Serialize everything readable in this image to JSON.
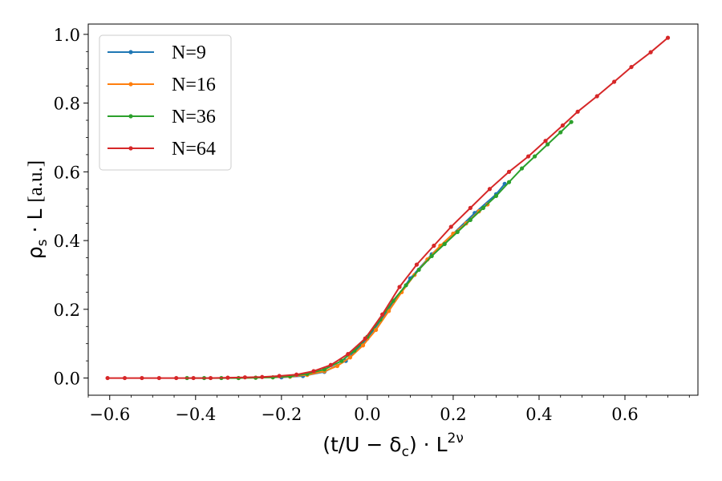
{
  "chart_data": {
    "type": "line",
    "title": "",
    "xlabel": "(t/U − δ_c) · L^{2ν}",
    "ylabel": "ρ_s · L [a.u.]",
    "xlabel_parts": {
      "main": "(t/U − δ",
      "sub": "c",
      "mid": ") · L",
      "sup": "2ν"
    },
    "ylabel_parts": {
      "main": "ρ",
      "sub": "s",
      "mid": " · L ",
      "unit": "[a.u.]"
    },
    "xlim": [
      -0.65,
      0.77
    ],
    "ylim": [
      -0.05,
      1.03
    ],
    "x_ticks": [
      -0.6,
      -0.4,
      -0.2,
      0.0,
      0.2,
      0.4,
      0.6
    ],
    "x_tick_labels": [
      "−0.6",
      "−0.4",
      "−0.2",
      "0.0",
      "0.2",
      "0.4",
      "0.6"
    ],
    "y_ticks": [
      0.0,
      0.2,
      0.4,
      0.6,
      0.8,
      1.0
    ],
    "y_tick_labels": [
      "0.0",
      "0.2",
      "0.4",
      "0.6",
      "0.8",
      "1.0"
    ],
    "grid": false,
    "legend_position": "top-left",
    "series": [
      {
        "name": "N=9",
        "color": "#1f77b4",
        "x": [
          -0.2,
          -0.15,
          -0.1,
          -0.05,
          0.0,
          0.05,
          0.1,
          0.15,
          0.2,
          0.25,
          0.3,
          0.32
        ],
        "y": [
          0.002,
          0.006,
          0.018,
          0.05,
          0.115,
          0.2,
          0.29,
          0.36,
          0.42,
          0.48,
          0.535,
          0.565
        ]
      },
      {
        "name": "N=16",
        "color": "#ff7f0e",
        "x": [
          -0.3,
          -0.26,
          -0.22,
          -0.18,
          -0.14,
          -0.1,
          -0.07,
          -0.04,
          -0.01,
          0.02,
          0.05,
          0.08,
          0.11,
          0.14,
          0.17,
          0.2,
          0.23,
          0.26,
          0.28
        ],
        "y": [
          0.0,
          0.001,
          0.002,
          0.004,
          0.009,
          0.02,
          0.035,
          0.06,
          0.095,
          0.14,
          0.195,
          0.25,
          0.3,
          0.345,
          0.385,
          0.42,
          0.45,
          0.485,
          0.505
        ]
      },
      {
        "name": "N=36",
        "color": "#2ca02c",
        "x": [
          -0.42,
          -0.38,
          -0.34,
          -0.3,
          -0.26,
          -0.22,
          -0.18,
          -0.14,
          -0.1,
          -0.06,
          -0.03,
          0.0,
          0.03,
          0.06,
          0.09,
          0.12,
          0.15,
          0.18,
          0.21,
          0.24,
          0.27,
          0.3,
          0.33,
          0.36,
          0.39,
          0.42,
          0.45,
          0.475
        ],
        "y": [
          0.0,
          0.0,
          0.0,
          0.0,
          0.001,
          0.002,
          0.005,
          0.012,
          0.025,
          0.05,
          0.08,
          0.12,
          0.17,
          0.225,
          0.27,
          0.315,
          0.355,
          0.39,
          0.425,
          0.46,
          0.495,
          0.53,
          0.57,
          0.61,
          0.645,
          0.68,
          0.715,
          0.745
        ]
      },
      {
        "name": "N=64",
        "color": "#d62728",
        "x": [
          -0.605,
          -0.565,
          -0.525,
          -0.485,
          -0.445,
          -0.405,
          -0.365,
          -0.325,
          -0.285,
          -0.245,
          -0.205,
          -0.165,
          -0.125,
          -0.085,
          -0.045,
          -0.005,
          0.035,
          0.075,
          0.115,
          0.155,
          0.195,
          0.24,
          0.285,
          0.33,
          0.375,
          0.415,
          0.455,
          0.49,
          0.535,
          0.575,
          0.615,
          0.66,
          0.7
        ],
        "y": [
          0.0,
          0.0,
          0.0,
          0.0,
          0.0,
          0.0,
          0.0,
          0.001,
          0.002,
          0.003,
          0.006,
          0.01,
          0.02,
          0.038,
          0.07,
          0.115,
          0.185,
          0.265,
          0.33,
          0.385,
          0.44,
          0.495,
          0.55,
          0.6,
          0.645,
          0.69,
          0.735,
          0.775,
          0.82,
          0.862,
          0.905,
          0.948,
          0.99
        ]
      }
    ]
  }
}
